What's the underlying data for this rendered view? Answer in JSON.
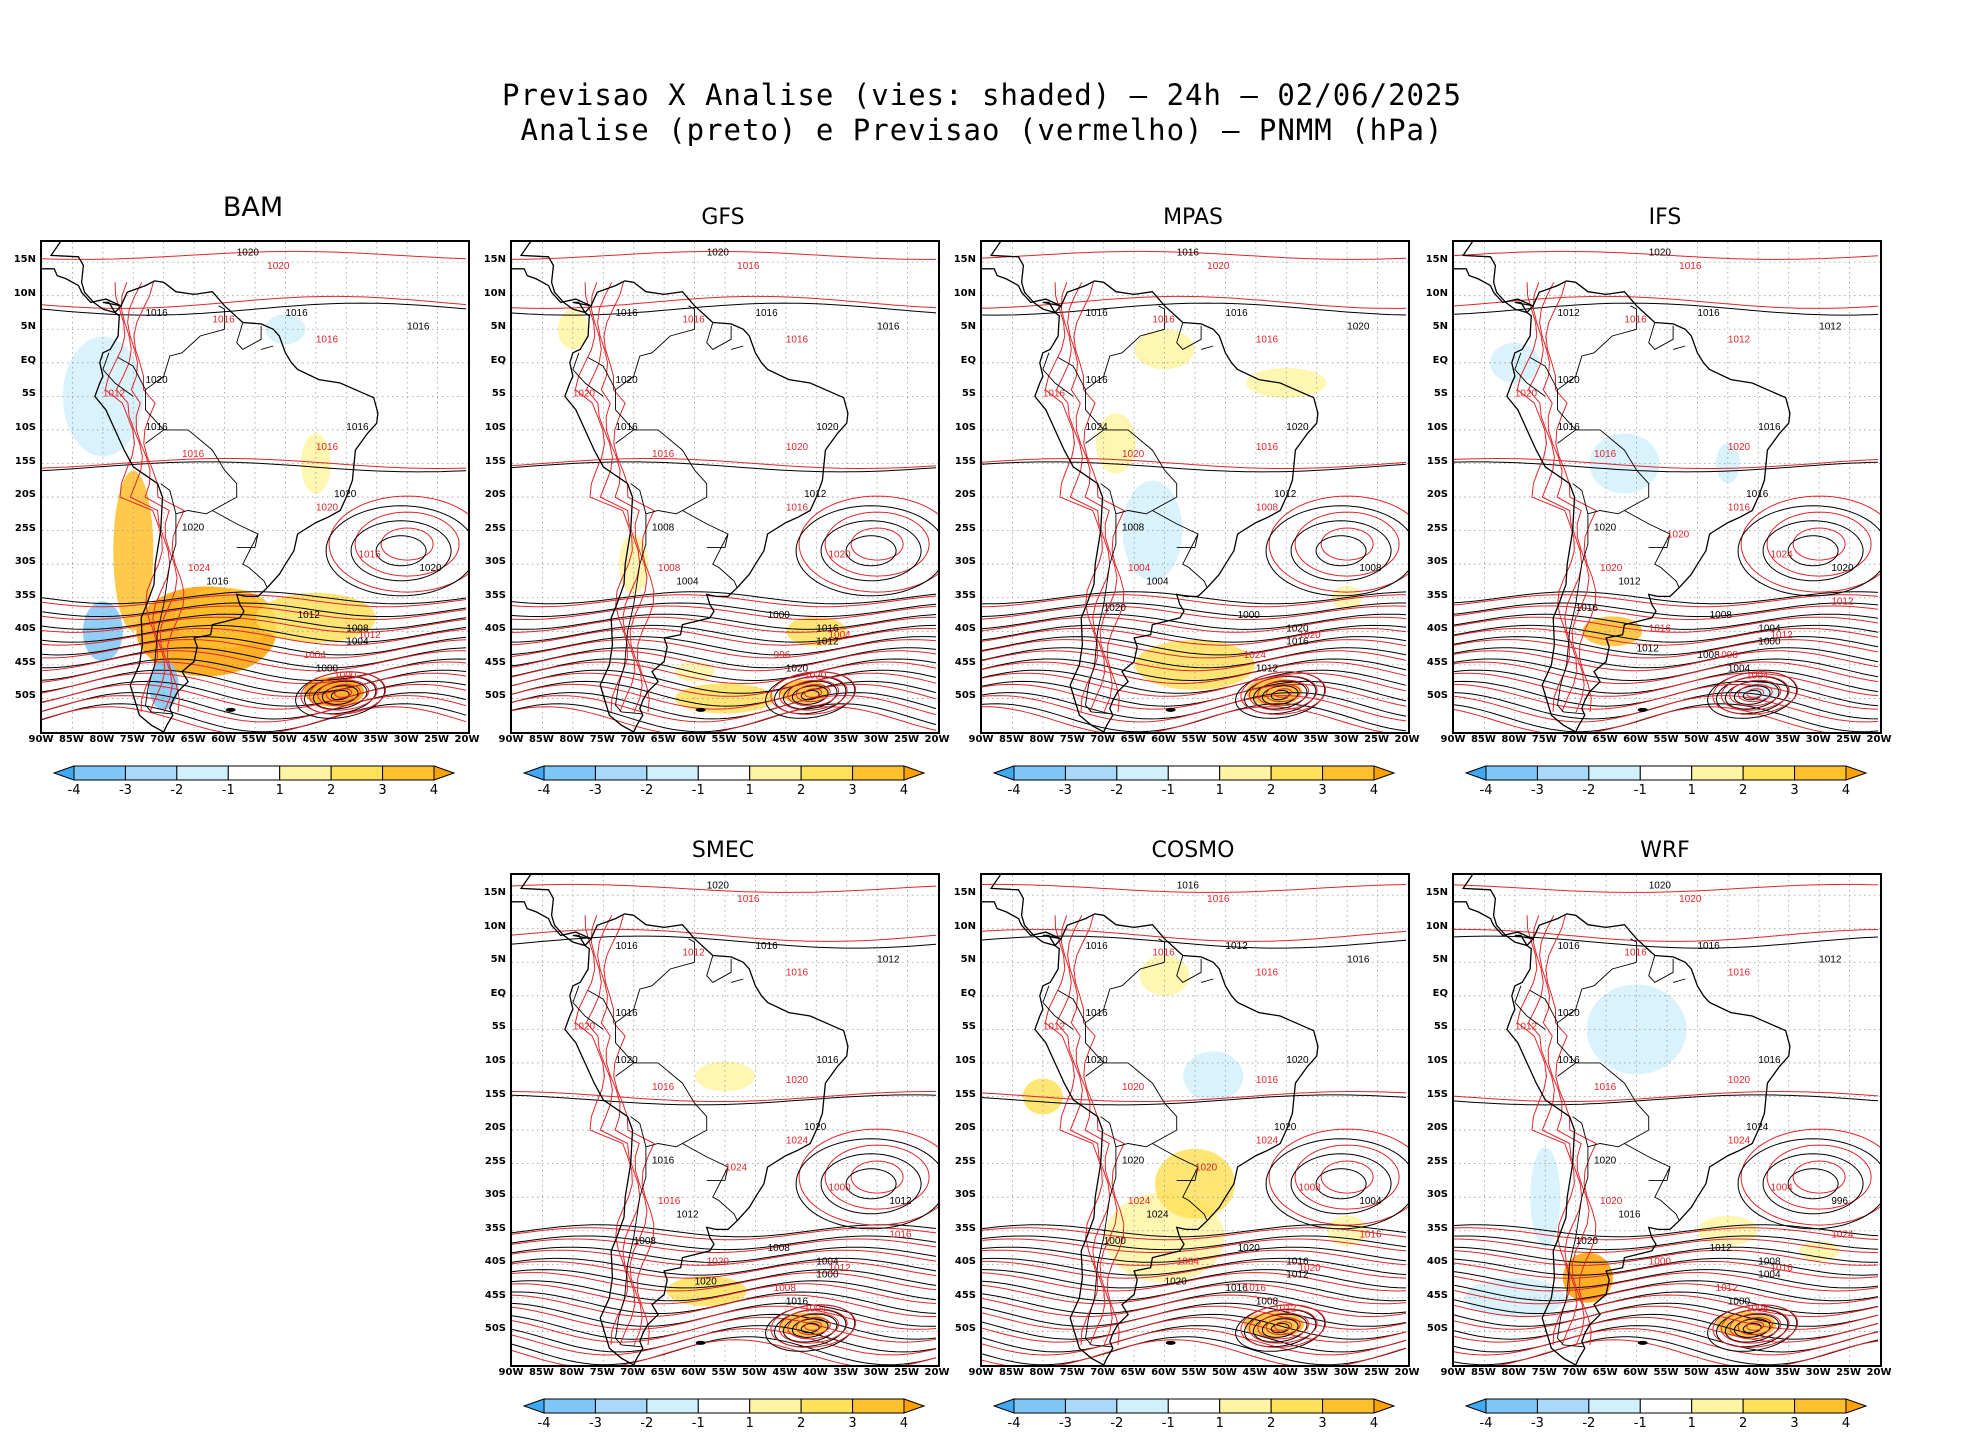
{
  "title": {
    "line1": "Previsao X Analise (vies: shaded) – 24h – 02/06/2025",
    "line2": "Analise (preto) e Previsao (vermelho) – PNMM (hPa)"
  },
  "latitude_labels": [
    "15N",
    "10N",
    "5N",
    "EQ",
    "5S",
    "10S",
    "15S",
    "20S",
    "25S",
    "30S",
    "35S",
    "40S",
    "45S",
    "50S"
  ],
  "longitude_labels": [
    "90W",
    "85W",
    "80W",
    "75W",
    "70W",
    "65W",
    "60W",
    "55W",
    "50W",
    "45W",
    "40W",
    "35W",
    "30W",
    "25W",
    "20W"
  ],
  "colorbar": {
    "labels": [
      "-4",
      "-3",
      "-2",
      "-1",
      "1",
      "2",
      "3",
      "4"
    ],
    "colors": [
      "#3fa9f5",
      "#7fc7f7",
      "#a8d8fa",
      "#d2f0fb",
      "#ffffff",
      "#fff4a3",
      "#ffe15a",
      "#ffc12b",
      "#ffa200"
    ]
  },
  "colors": {
    "analysis_contour": "#000000",
    "forecast_contour": "#e0262a",
    "grid": "#9a9a9a"
  },
  "panels": [
    {
      "name": "BAM",
      "analysis_labels": [
        "1020",
        "1016",
        "1016",
        "1016",
        "1020",
        "1016",
        "1016",
        "1020",
        "1020",
        "1016",
        "1012",
        "1008",
        "1004",
        "1000",
        "1020"
      ],
      "forecast_labels": [
        "1020",
        "1016",
        "1016",
        "1012",
        "1016",
        "1016",
        "1020",
        "1024",
        "1012",
        "1004",
        "1000",
        "1016"
      ]
    },
    {
      "name": "GFS",
      "analysis_labels": [
        "1020",
        "1016",
        "1016",
        "1016",
        "1020",
        "1016",
        "1020",
        "1012",
        "1008",
        "1004",
        "1000",
        "1016",
        "1012",
        "1020"
      ],
      "forecast_labels": [
        "1016",
        "1016",
        "1016",
        "1020",
        "1016",
        "1020",
        "1016",
        "1008",
        "1004",
        "996",
        "1020",
        "1020"
      ]
    },
    {
      "name": "MPAS",
      "analysis_labels": [
        "1016",
        "1016",
        "1016",
        "1020",
        "1016",
        "1024",
        "1020",
        "1012",
        "1008",
        "1004",
        "1000",
        "1020",
        "1016",
        "1012",
        "1008",
        "1020"
      ],
      "forecast_labels": [
        "1020",
        "1016",
        "1016",
        "1016",
        "1020",
        "1016",
        "1008",
        "1004",
        "1020",
        "1024"
      ]
    },
    {
      "name": "IFS",
      "analysis_labels": [
        "1020",
        "1012",
        "1016",
        "1012",
        "1020",
        "1016",
        "1016",
        "1016",
        "1020",
        "1012",
        "1008",
        "1004",
        "1000",
        "1004",
        "1020",
        "1016",
        "1012",
        "1008"
      ],
      "forecast_labels": [
        "1016",
        "1016",
        "1012",
        "1020",
        "1016",
        "1020",
        "1016",
        "1020",
        "1012",
        "1008",
        "1004",
        "1024",
        "1016",
        "1012",
        "1020"
      ]
    },
    {
      "name": "SMEC",
      "analysis_labels": [
        "1020",
        "1016",
        "1016",
        "1012",
        "1016",
        "1020",
        "1016",
        "1020",
        "1016",
        "1012",
        "1008",
        "1004",
        "1000",
        "1016",
        "1012",
        "1008",
        "1020"
      ],
      "forecast_labels": [
        "1016",
        "1012",
        "1016",
        "1020",
        "1016",
        "1020",
        "1024",
        "1016",
        "1012",
        "1008",
        "1004",
        "1000",
        "1020",
        "1016",
        "1024"
      ]
    },
    {
      "name": "COSMO",
      "analysis_labels": [
        "1016",
        "1016",
        "1012",
        "1016",
        "1016",
        "1020",
        "1020",
        "1020",
        "1020",
        "1024",
        "1020",
        "1016",
        "1012",
        "1008",
        "1004",
        "1000",
        "1020",
        "1016"
      ],
      "forecast_labels": [
        "1016",
        "1016",
        "1016",
        "1012",
        "1020",
        "1016",
        "1024",
        "1024",
        "1020",
        "1016",
        "1012",
        "1008",
        "1004",
        "1016",
        "1020"
      ]
    },
    {
      "name": "WRF",
      "analysis_labels": [
        "1020",
        "1016",
        "1016",
        "1012",
        "1020",
        "1016",
        "1016",
        "1024",
        "1020",
        "1016",
        "1012",
        "1008",
        "1004",
        "1000",
        "996",
        "1020"
      ],
      "forecast_labels": [
        "1020",
        "1016",
        "1016",
        "1012",
        "1016",
        "1020",
        "1024",
        "1020",
        "1016",
        "1012",
        "1008",
        "1004",
        "1000",
        "1024"
      ]
    }
  ]
}
